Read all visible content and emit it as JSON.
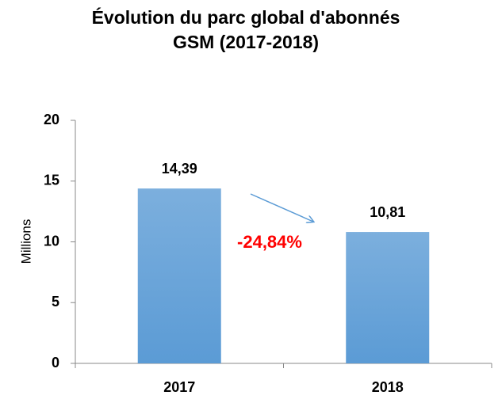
{
  "chart_data": {
    "type": "bar",
    "title": [
      "Évolution du parc global d'abonnés",
      "GSM (2017-2018)"
    ],
    "y_label": "Millions",
    "categories": [
      "2017",
      "2018"
    ],
    "values": [
      14.39,
      10.81
    ],
    "value_labels": [
      "14,39",
      "10,81"
    ],
    "color": "#5b9bd5",
    "annotation": "-24,84%",
    "annotation_color": "#ff0000",
    "ylim": [
      0,
      20
    ],
    "yticks": [
      0,
      5,
      10,
      15,
      20
    ],
    "grid": false
  }
}
